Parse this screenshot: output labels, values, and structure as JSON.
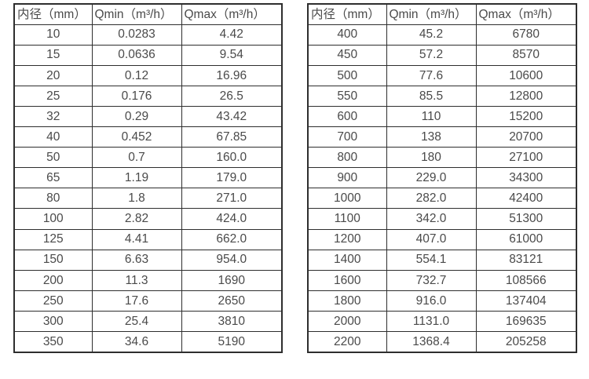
{
  "page": {
    "background": "#ffffff",
    "text_color": "#4a4a4a",
    "border_color": "#2e2e2e"
  },
  "tables": [
    {
      "name": "flow-table-small-diameters",
      "headers": [
        "内径（mm）",
        "Qmin（m³/h）",
        "Qmax（m³/h）"
      ],
      "rows": [
        [
          "10",
          "0.0283",
          "4.42"
        ],
        [
          "15",
          "0.0636",
          "9.54"
        ],
        [
          "20",
          "0.12",
          "16.96"
        ],
        [
          "25",
          "0.176",
          "26.5"
        ],
        [
          "32",
          "0.29",
          "43.42"
        ],
        [
          "40",
          "0.452",
          "67.85"
        ],
        [
          "50",
          "0.7",
          "160.0"
        ],
        [
          "65",
          "1.19",
          "179.0"
        ],
        [
          "80",
          "1.8",
          "271.0"
        ],
        [
          "100",
          "2.82",
          "424.0"
        ],
        [
          "125",
          "4.41",
          "662.0"
        ],
        [
          "150",
          "6.63",
          "954.0"
        ],
        [
          "200",
          "11.3",
          "1690"
        ],
        [
          "250",
          "17.6",
          "2650"
        ],
        [
          "300",
          "25.4",
          "3810"
        ],
        [
          "350",
          "34.6",
          "5190"
        ]
      ]
    },
    {
      "name": "flow-table-large-diameters",
      "headers": [
        "内径（mm）",
        "Qmin（m³/h）",
        "Qmax（m³/h）"
      ],
      "rows": [
        [
          "400",
          "45.2",
          "6780"
        ],
        [
          "450",
          "57.2",
          "8570"
        ],
        [
          "500",
          "77.6",
          "10600"
        ],
        [
          "550",
          "85.5",
          "12800"
        ],
        [
          "600",
          "110",
          "15200"
        ],
        [
          "700",
          "138",
          "20700"
        ],
        [
          "800",
          "180",
          "27100"
        ],
        [
          "900",
          "229.0",
          "34300"
        ],
        [
          "1000",
          "282.0",
          "42400"
        ],
        [
          "1100",
          "342.0",
          "51300"
        ],
        [
          "1200",
          "407.0",
          "61000"
        ],
        [
          "1400",
          "554.1",
          "83121"
        ],
        [
          "1600",
          "732.7",
          "108566"
        ],
        [
          "1800",
          "916.0",
          "137404"
        ],
        [
          "2000",
          "1131.0",
          "169635"
        ],
        [
          "2200",
          "1368.4",
          "205258"
        ]
      ]
    }
  ]
}
